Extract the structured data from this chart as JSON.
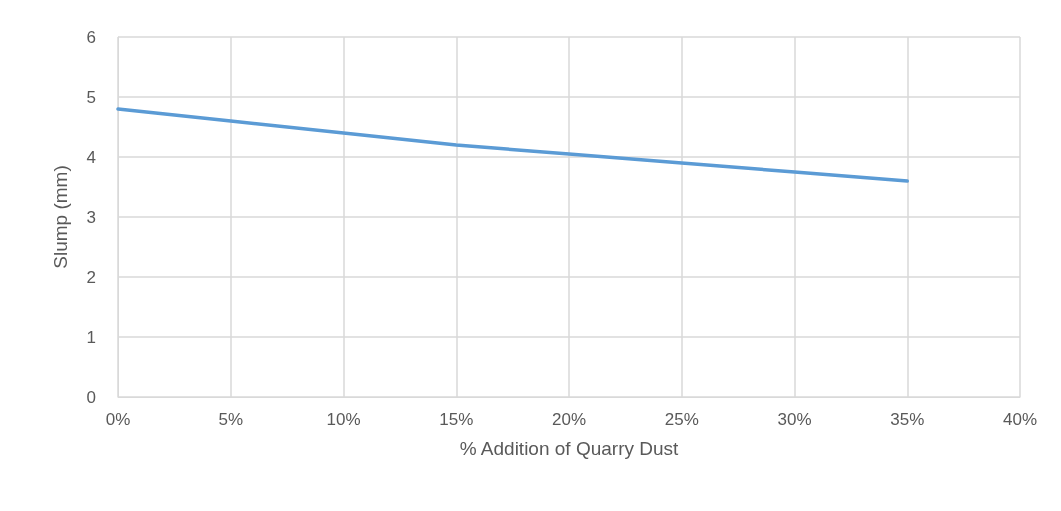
{
  "chart_data": {
    "type": "line",
    "xlabel": "% Addition of Quarry Dust",
    "ylabel": "Slump (mm)",
    "x": [
      0,
      5,
      10,
      15,
      20,
      25,
      30,
      35
    ],
    "series": [
      {
        "color": "#5b9bd5",
        "values": [
          4.8,
          4.6,
          4.4,
          4.2,
          4.05,
          3.9,
          3.75,
          3.6
        ]
      }
    ],
    "xlim": [
      0,
      40
    ],
    "xticks": [
      {
        "value": 0,
        "label": "0%"
      },
      {
        "value": 5,
        "label": "5%"
      },
      {
        "value": 10,
        "label": "10%"
      },
      {
        "value": 15,
        "label": "15%"
      },
      {
        "value": 20,
        "label": "20%"
      },
      {
        "value": 25,
        "label": "25%"
      },
      {
        "value": 30,
        "label": "30%"
      },
      {
        "value": 35,
        "label": "35%"
      },
      {
        "value": 40,
        "label": "40%"
      }
    ],
    "ylim": [
      0,
      6
    ],
    "yticks": [
      0,
      1,
      2,
      3,
      4,
      5,
      6
    ],
    "grid": true,
    "marker": "none",
    "line_style": "solid"
  }
}
